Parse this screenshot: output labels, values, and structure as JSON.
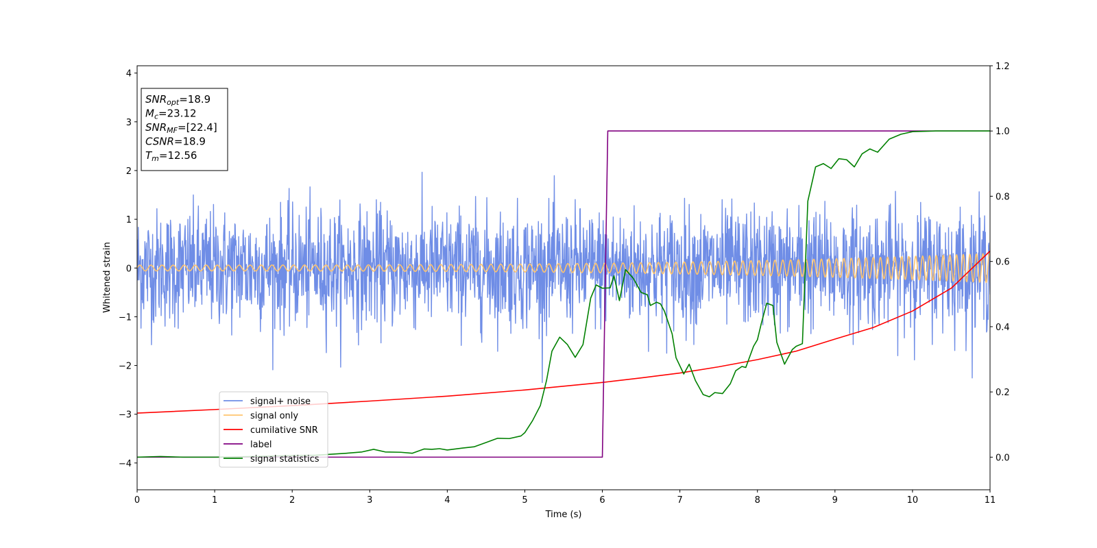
{
  "chart_data": {
    "type": "line",
    "xlabel": "Time (s)",
    "ylabel": "Whitened strain",
    "xlim": [
      0,
      11
    ],
    "ylim_left": [
      -4.55,
      4.15
    ],
    "ylim_right": [
      -0.1,
      1.2
    ],
    "x_ticks": [
      0,
      1,
      2,
      3,
      4,
      5,
      6,
      7,
      8,
      9,
      10,
      11
    ],
    "y_left_ticks": [
      -4,
      -3,
      -2,
      -1,
      0,
      1,
      2,
      3,
      4
    ],
    "y_right_ticks": [
      0.0,
      0.2,
      0.4,
      0.6,
      0.8,
      1.0,
      1.2
    ],
    "y_left_tick_labels": [
      "−4",
      "−3",
      "−2",
      "−1",
      "0",
      "1",
      "2",
      "3",
      "4"
    ],
    "y_right_tick_labels": [
      "0.0",
      "0.2",
      "0.4",
      "0.6",
      "0.8",
      "1.0",
      "1.2"
    ],
    "legend": {
      "placement": "lower-left",
      "entries": [
        {
          "label": "signal+ noise",
          "color": "#6f8de6"
        },
        {
          "label": "signal only",
          "color": "#ffc46e"
        },
        {
          "label": "cumilative SNR",
          "color": "#ff0000"
        },
        {
          "label": "label",
          "color": "#800080"
        },
        {
          "label": "signal statistics",
          "color": "#008000"
        }
      ]
    },
    "annotation": [
      {
        "name": "SNR",
        "sub": "opt",
        "value": "=18.9"
      },
      {
        "name": "M",
        "sub": "c",
        "value": "=23.12"
      },
      {
        "name": "SNR",
        "sub": "MF",
        "value": "=[22.4]"
      },
      {
        "name": "CSNR",
        "sub": "",
        "value": "=18.9"
      },
      {
        "name": "T",
        "sub": "m",
        "value": "=12.56"
      }
    ],
    "series": [
      {
        "name": "signal+ noise",
        "axis": "left",
        "color": "#6f8de6",
        "kind": "noise",
        "amplitude_std": 0.6,
        "range_approx": [
          -2.35,
          2.25
        ],
        "n_points": 2200
      },
      {
        "name": "signal only",
        "axis": "left",
        "color": "#ffc46e",
        "kind": "chirp",
        "amplitude_start": 0.06,
        "amplitude_end": 0.3,
        "cycles_start_per_s": 7.0,
        "cycles_end_per_s": 12.0
      },
      {
        "name": "cumilative SNR",
        "axis": "right",
        "color": "#ff0000",
        "x": [
          0,
          1,
          2,
          3,
          4,
          5,
          6,
          6.5,
          7,
          7.5,
          8,
          8.5,
          9,
          9.5,
          10,
          10.5,
          11
        ],
        "y": [
          0.135,
          0.146,
          0.158,
          0.172,
          0.187,
          0.206,
          0.229,
          0.243,
          0.258,
          0.277,
          0.299,
          0.325,
          0.362,
          0.398,
          0.448,
          0.518,
          0.632
        ]
      },
      {
        "name": "label",
        "axis": "right",
        "color": "#800080",
        "x": [
          0,
          6.0,
          6.07,
          11
        ],
        "y": [
          0.0,
          0.0,
          1.0,
          1.0
        ]
      },
      {
        "name": "signal statistics",
        "axis": "right",
        "color": "#008000",
        "x": [
          0,
          0.3,
          0.6,
          1.0,
          1.5,
          2.0,
          2.3,
          2.7,
          2.9,
          3.05,
          3.2,
          3.4,
          3.55,
          3.7,
          3.8,
          3.9,
          4.0,
          4.2,
          4.35,
          4.5,
          4.65,
          4.8,
          4.95,
          5.0,
          5.1,
          5.2,
          5.28,
          5.35,
          5.45,
          5.55,
          5.65,
          5.75,
          5.85,
          5.92,
          6.0,
          6.1,
          6.15,
          6.22,
          6.3,
          6.4,
          6.5,
          6.58,
          6.62,
          6.7,
          6.75,
          6.8,
          6.9,
          6.95,
          7.05,
          7.12,
          7.2,
          7.3,
          7.38,
          7.45,
          7.55,
          7.65,
          7.72,
          7.8,
          7.85,
          7.95,
          8.0,
          8.05,
          8.12,
          8.2,
          8.25,
          8.35,
          8.45,
          8.5,
          8.58,
          8.65,
          8.75,
          8.85,
          8.95,
          9.05,
          9.15,
          9.25,
          9.35,
          9.45,
          9.55,
          9.7,
          9.85,
          10.0,
          10.3,
          11.0
        ],
        "y": [
          0.0,
          0.002,
          0.0,
          0.0,
          0.002,
          0.005,
          0.006,
          0.012,
          0.016,
          0.024,
          0.016,
          0.015,
          0.012,
          0.025,
          0.024,
          0.026,
          0.022,
          0.028,
          0.032,
          0.045,
          0.058,
          0.057,
          0.065,
          0.075,
          0.112,
          0.158,
          0.235,
          0.325,
          0.368,
          0.345,
          0.306,
          0.345,
          0.488,
          0.528,
          0.518,
          0.519,
          0.556,
          0.48,
          0.575,
          0.548,
          0.505,
          0.498,
          0.465,
          0.475,
          0.47,
          0.448,
          0.378,
          0.305,
          0.255,
          0.285,
          0.235,
          0.192,
          0.185,
          0.198,
          0.195,
          0.225,
          0.265,
          0.278,
          0.275,
          0.34,
          0.36,
          0.41,
          0.472,
          0.465,
          0.352,
          0.285,
          0.33,
          0.34,
          0.348,
          0.785,
          0.89,
          0.9,
          0.885,
          0.915,
          0.912,
          0.89,
          0.93,
          0.945,
          0.935,
          0.975,
          0.99,
          0.998,
          1.0,
          1.0
        ]
      }
    ]
  }
}
